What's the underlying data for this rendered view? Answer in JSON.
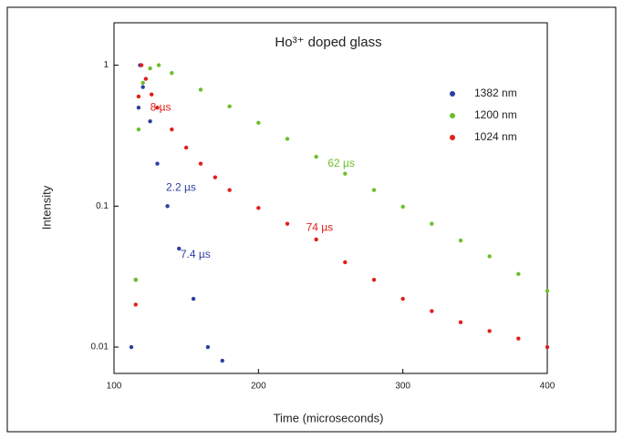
{
  "chart_data": {
    "type": "scatter",
    "title": "Ho³⁺ doped glass",
    "x_label": "Time (microseconds)",
    "y_label": "Intensity",
    "log_y": true,
    "xlim": [
      100,
      400
    ],
    "xticks": [
      100,
      200,
      300,
      400
    ],
    "ylim": [
      0.0065,
      2
    ],
    "yticks": [
      {
        "value": 0.01,
        "label": "0.01"
      },
      {
        "value": 0.1,
        "label": "0.1"
      },
      1
    ],
    "legend": "upper right",
    "series": [
      {
        "name": "1382 nm",
        "color": "#2b3fa0",
        "x": [
          112,
          115,
          117,
          118,
          120,
          125,
          130,
          137,
          145,
          155,
          165,
          175
        ],
        "values": [
          0.01,
          0.03,
          0.5,
          1.0,
          0.7,
          0.4,
          0.2,
          0.1,
          0.05,
          0.022,
          0.01,
          0.008
        ]
      },
      {
        "name": "1200 nm",
        "color": "#6cbf2a",
        "x": [
          115,
          117,
          120,
          125,
          131,
          140,
          160,
          180,
          200,
          220,
          240,
          260,
          280,
          300,
          320,
          340,
          360,
          380,
          400
        ],
        "values": [
          0.03,
          0.35,
          0.75,
          0.95,
          1.0,
          0.88,
          0.67,
          0.51,
          0.39,
          0.3,
          0.224,
          0.17,
          0.13,
          0.099,
          0.075,
          0.057,
          0.044,
          0.033,
          0.025
        ]
      },
      {
        "name": "1024 nm",
        "color": "#e0201b",
        "x": [
          115,
          117,
          119,
          122,
          126,
          130,
          140,
          150,
          160,
          170,
          180,
          200,
          220,
          240,
          260,
          280,
          300,
          320,
          340,
          360,
          380,
          400
        ],
        "values": [
          0.02,
          0.6,
          1.0,
          0.8,
          0.62,
          0.5,
          0.35,
          0.26,
          0.2,
          0.16,
          0.13,
          0.097,
          0.075,
          0.058,
          0.04,
          0.03,
          0.022,
          0.018,
          0.015,
          0.013,
          0.0115,
          0.01
        ]
      }
    ],
    "annotations": [
      {
        "text": "8 µs",
        "color": "#e0201b",
        "x": 125,
        "y": 0.5
      },
      {
        "text": "2.2 µs",
        "color": "#2b3fa0",
        "x": 136,
        "y": 0.135
      },
      {
        "text": "7.4 µs",
        "color": "#2b3fa0",
        "x": 146,
        "y": 0.045
      },
      {
        "text": "62 µs",
        "color": "#6cbf2a",
        "x": 248,
        "y": 0.2
      },
      {
        "text": "74 µs",
        "color": "#e0201b",
        "x": 233,
        "y": 0.07
      }
    ]
  }
}
